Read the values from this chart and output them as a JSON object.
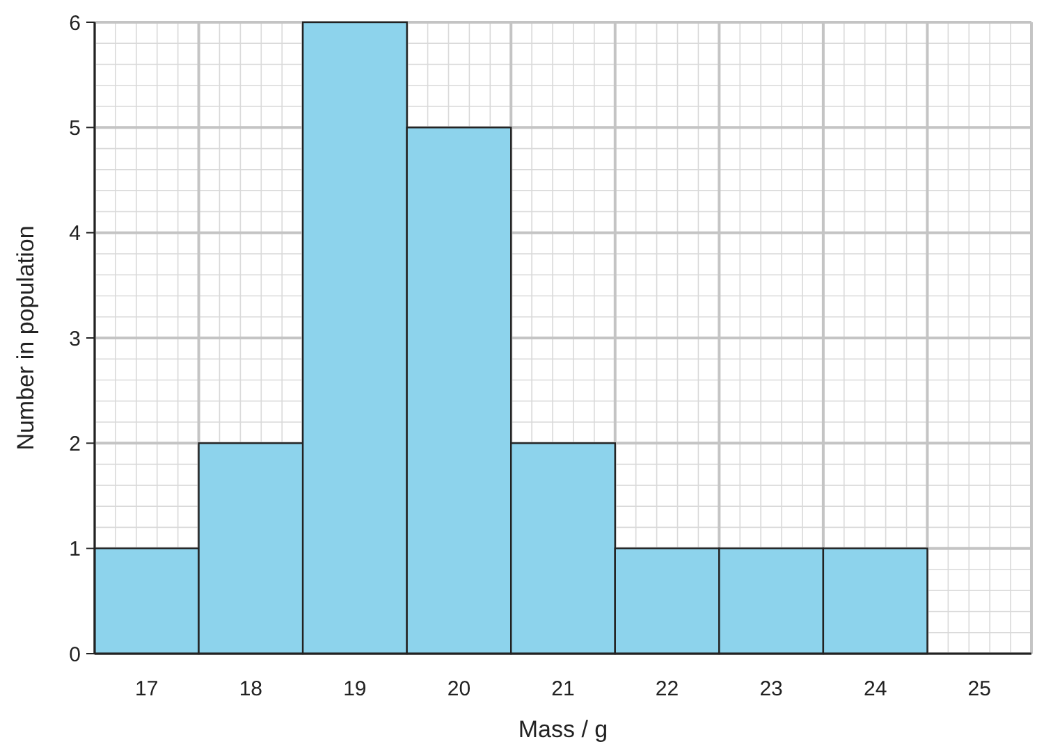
{
  "chart_data": {
    "type": "bar",
    "xlabel": "Mass / g",
    "ylabel": "Number in population",
    "categories": [
      "17",
      "18",
      "19",
      "20",
      "21",
      "22",
      "23",
      "24",
      "25"
    ],
    "values": [
      1,
      2,
      6,
      5,
      2,
      1,
      1,
      1,
      0
    ],
    "color": "#8dd3ec",
    "ylim": [
      0,
      6
    ],
    "yticks": [
      0,
      1,
      2,
      3,
      4,
      5,
      6
    ],
    "grid": true
  }
}
